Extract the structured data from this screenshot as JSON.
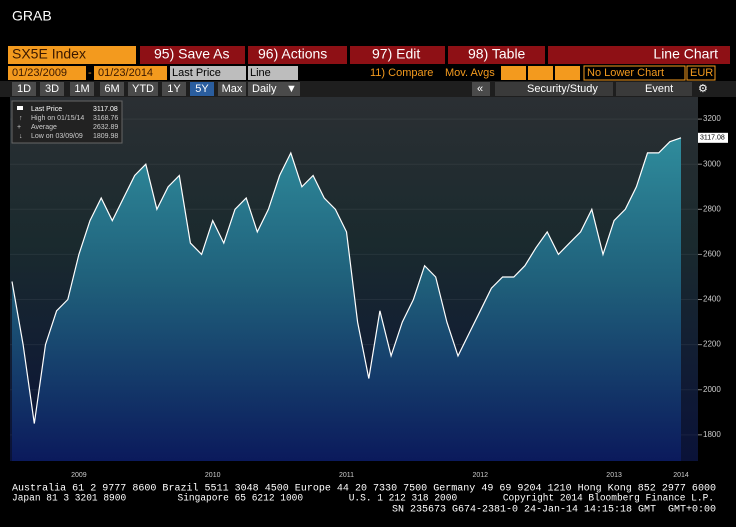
{
  "ui": {
    "window_title": "GRAB",
    "security": "SX5E Index",
    "menu": [
      "95) Save As",
      "96) Actions",
      "97) Edit",
      "98) Table"
    ],
    "view": "Line Chart",
    "start_date": "01/23/2009",
    "date_sep": "-",
    "end_date": "01/23/2014",
    "field": "Last Price",
    "style": "Line",
    "compare": "11) Compare",
    "mov_avgs": "Mov. Avgs",
    "lower_chart": "No Lower Chart",
    "currency": "EUR",
    "periods": [
      "1D",
      "3D",
      "1M",
      "6M",
      "YTD",
      "1Y",
      "5Y",
      "Max"
    ],
    "frequency": "Daily",
    "collapse": "«",
    "study": "Security/Study",
    "event": "Event",
    "footer": [
      "Australia 61 2 9777 8600 Brazil 5511 3048 4500 Europe 44 20 7330 7500 Germany 49 69 9204 1210 Hong Kong 852 2977 6000",
      "Japan 81 3 3201 8900         Singapore 65 6212 1000        U.S. 1 212 318 2000        Copyright 2014 Bloomberg Finance L.P.",
      "SN 235673 G674-2381-0 24-Jan-14 14:15:18 GMT  GMT+0:00"
    ]
  },
  "chart_data": {
    "type": "area",
    "categories": [
      null,
      null,
      null,
      null,
      null,
      null,
      "2009",
      null,
      null,
      null,
      null,
      null,
      null,
      null,
      null,
      null,
      null,
      null,
      "2010",
      null,
      null,
      null,
      null,
      null,
      null,
      null,
      null,
      null,
      null,
      null,
      "2011",
      null,
      null,
      null,
      null,
      null,
      null,
      null,
      null,
      null,
      null,
      null,
      "2012",
      null,
      null,
      null,
      null,
      null,
      null,
      null,
      null,
      null,
      null,
      null,
      "2013",
      null,
      null,
      null,
      null,
      null,
      "2014"
    ],
    "series": [
      {
        "name": "Last Price",
        "color": "#ffffff",
        "values": [
          2480,
          2200,
          1850,
          2200,
          2350,
          2400,
          2600,
          2750,
          2850,
          2750,
          2850,
          2950,
          3000,
          2800,
          2900,
          2950,
          2650,
          2600,
          2750,
          2650,
          2800,
          2850,
          2700,
          2800,
          2950,
          3050,
          2900,
          2950,
          2850,
          2800,
          2700,
          2300,
          2050,
          2350,
          2150,
          2300,
          2400,
          2550,
          2500,
          2300,
          2150,
          2250,
          2350,
          2450,
          2500,
          2500,
          2550,
          2630,
          2700,
          2600,
          2650,
          2700,
          2800,
          2600,
          2750,
          2800,
          2900,
          3050,
          3050,
          3100,
          3117
        ]
      }
    ],
    "last_label": "3117.08",
    "stats": [
      {
        "label": "High on 01/15/14",
        "value": "3168.76"
      },
      {
        "label": "Average",
        "value": "2632.89"
      },
      {
        "label": "Low on 03/09/09",
        "value": "1809.98"
      }
    ],
    "ylim": [
      1684,
      3298
    ],
    "yticks": [
      1800,
      2000,
      2200,
      2400,
      2600,
      2800,
      3000,
      3200
    ]
  }
}
